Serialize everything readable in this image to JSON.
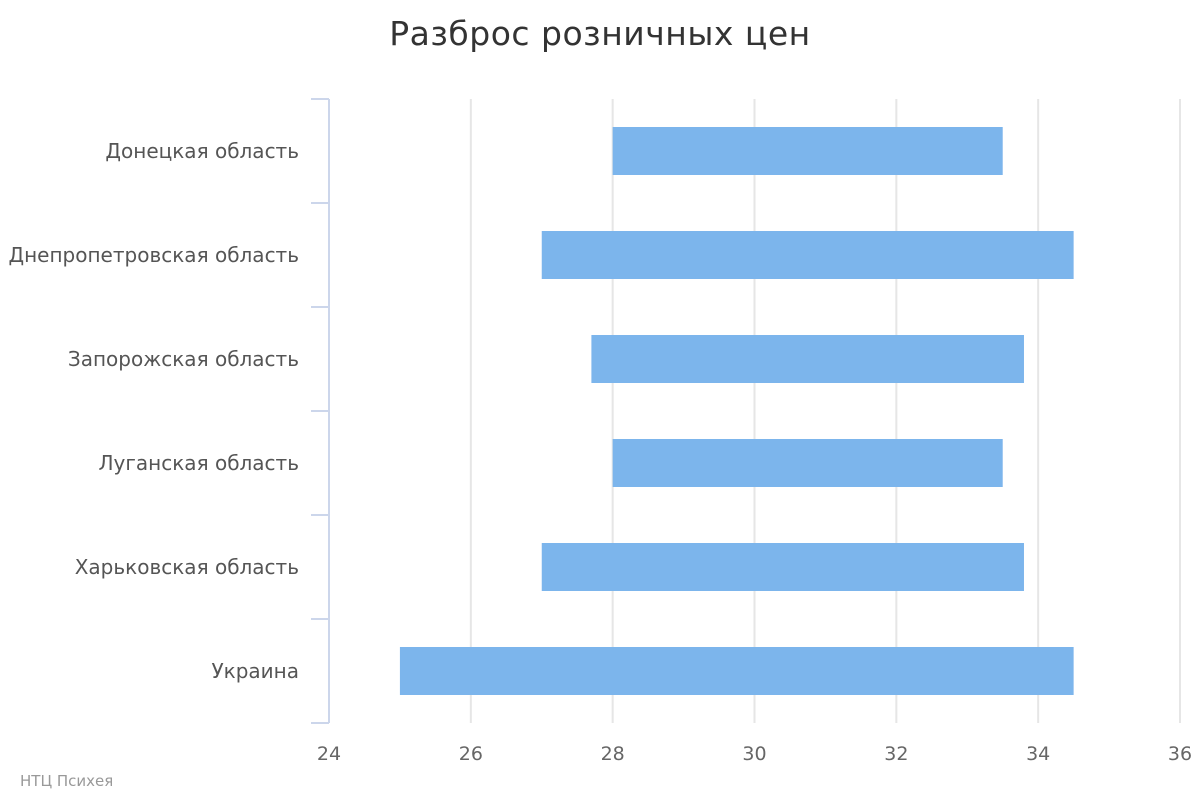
{
  "chart_data": {
    "type": "bar",
    "orientation": "horizontal",
    "subtype": "columnrange",
    "title": "Разброс розничных цен",
    "xlabel": "",
    "ylabel": "",
    "categories": [
      "Донецкая область",
      "Днепропетровская область",
      "Запорожская область",
      "Луганская область",
      "Харьковская область",
      "Украина"
    ],
    "series": [
      {
        "ranges": [
          [
            28.0,
            33.5
          ],
          [
            27.0,
            34.5
          ],
          [
            27.7,
            33.8
          ],
          [
            28.0,
            33.5
          ],
          [
            27.0,
            33.8
          ],
          [
            25.0,
            34.5
          ]
        ]
      }
    ],
    "value_axis": {
      "range": [
        24,
        36
      ],
      "ticks": [
        "24",
        "26",
        "28",
        "30",
        "32",
        "34",
        "36"
      ]
    },
    "grid": true,
    "legend": "none",
    "bar_color": "#7cb5ec"
  },
  "credit": "НТЦ Психея"
}
